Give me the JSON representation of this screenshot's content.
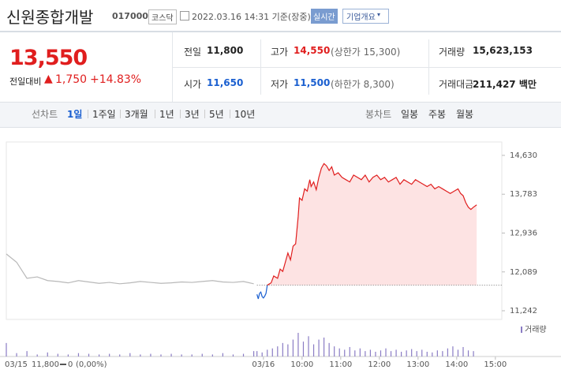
{
  "header": {
    "name": "신원종합개발",
    "code": "017000",
    "market": "코스닥",
    "datetime": "2022.03.16 14:31 기준(장중)",
    "badge": "실시간",
    "button": "기업개요"
  },
  "price": {
    "current": "13,550",
    "change_label": "전일대비",
    "change": "1,750",
    "change_pct": "+14.83%"
  },
  "stats": [
    {
      "label": "전일",
      "value": "11,800",
      "color": "#222"
    },
    {
      "label": "고가",
      "value": "14,550",
      "extra": "(상한가 15,300)",
      "color": "#e01e1e"
    },
    {
      "label": "거래량",
      "value": "15,623,153",
      "color": "#222"
    },
    {
      "label": "시가",
      "value": "11,650",
      "color": "#1a5fd0"
    },
    {
      "label": "저가",
      "value": "11,500",
      "extra": "(하한가 8,300)",
      "color": "#1a5fd0"
    },
    {
      "label": "거래대금",
      "value": "211,427 백만",
      "color": "#222"
    }
  ],
  "tabs": {
    "line_label": "선차트",
    "line": [
      "1일",
      "1주일",
      "3개월",
      "1년",
      "3년",
      "5년",
      "10년"
    ],
    "candle_label": "봉차트",
    "candle": [
      "일봉",
      "주봉",
      "월봉"
    ]
  },
  "chart_data": {
    "type": "line",
    "xlim": [
      141,
      910
    ],
    "ylim": [
      11053,
      14922
    ],
    "xticks": [
      {
        "value": 540,
        "label": "03/16"
      },
      {
        "value": 600,
        "label": "10:00"
      },
      {
        "value": 660,
        "label": "11:00"
      },
      {
        "value": 720,
        "label": "12:00"
      },
      {
        "value": 780,
        "label": "13:00"
      },
      {
        "value": 840,
        "label": "14:00"
      },
      {
        "value": 900,
        "label": "15:00"
      }
    ],
    "yticks": [
      {
        "value": 14630,
        "label": "14,630"
      },
      {
        "value": 13783,
        "label": "13,783"
      },
      {
        "value": 12936,
        "label": "12,936"
      },
      {
        "value": 12089,
        "label": "12,089"
      },
      {
        "value": 11242,
        "label": "11,242"
      }
    ],
    "baseline": 11800,
    "series": [
      {
        "color": "#b8b8b8",
        "x": [
          141,
          157,
          173,
          189,
          205,
          221,
          237,
          253,
          269,
          285,
          301,
          317,
          333,
          349,
          365,
          381,
          397,
          413,
          429,
          445,
          461,
          477,
          493,
          509,
          525
        ],
        "values": [
          12480,
          12300,
          11950,
          11980,
          11900,
          11880,
          11850,
          11900,
          11870,
          11840,
          11860,
          11830,
          11850,
          11880,
          11860,
          11840,
          11850,
          11870,
          11860,
          11880,
          11900,
          11870,
          11860,
          11880,
          11830
        ]
      },
      {
        "color": "#1a5fd0",
        "x": [
          530,
          532,
          534,
          536,
          538,
          540,
          542,
          544,
          546
        ],
        "values": [
          11600,
          11500,
          11620,
          11650,
          11550,
          11520,
          11560,
          11620,
          11800
        ]
      },
      {
        "color": "#e01e1e",
        "fill": "#fde3e3",
        "x": [
          546,
          552,
          556,
          562,
          566,
          570,
          574,
          578,
          582,
          586,
          590,
          594,
          596,
          600,
          604,
          608,
          612,
          614,
          618,
          622,
          626,
          630,
          634,
          638,
          642,
          646,
          650,
          656,
          662,
          668,
          674,
          680,
          686,
          692,
          698,
          704,
          710,
          716,
          722,
          728,
          734,
          740,
          746,
          752,
          758,
          764,
          770,
          776,
          782,
          788,
          794,
          800,
          806,
          812,
          818,
          824,
          830,
          836,
          842,
          846,
          850,
          854,
          858,
          862,
          866,
          871
        ],
        "values": [
          11800,
          11850,
          12000,
          11950,
          12150,
          12100,
          12300,
          12500,
          12350,
          12650,
          12700,
          13300,
          13700,
          13650,
          13900,
          13850,
          14100,
          13950,
          14050,
          13880,
          14150,
          14350,
          14450,
          14400,
          14300,
          14380,
          14200,
          14250,
          14150,
          14100,
          14050,
          14200,
          14150,
          14100,
          14200,
          14050,
          14150,
          14200,
          14100,
          14150,
          14050,
          14100,
          14150,
          14000,
          14100,
          14050,
          14000,
          14100,
          14050,
          14000,
          13950,
          14000,
          13900,
          13950,
          13900,
          13850,
          13800,
          13850,
          13900,
          13800,
          13750,
          13600,
          13500,
          13450,
          13500,
          13550
        ]
      }
    ],
    "volume": {
      "name": "거래량",
      "color": "#8a7cc4",
      "x": [
        141,
        157,
        173,
        189,
        205,
        221,
        237,
        253,
        269,
        285,
        301,
        317,
        333,
        349,
        365,
        381,
        397,
        413,
        429,
        445,
        461,
        477,
        493,
        509,
        525,
        530,
        538,
        546,
        554,
        562,
        570,
        578,
        586,
        594,
        602,
        610,
        618,
        626,
        634,
        642,
        650,
        658,
        666,
        674,
        682,
        690,
        698,
        706,
        714,
        722,
        730,
        738,
        746,
        754,
        762,
        770,
        778,
        786,
        794,
        802,
        810,
        818,
        826,
        834,
        842,
        850,
        858,
        866
      ],
      "values": [
        20,
        5,
        8,
        3,
        6,
        4,
        3,
        5,
        4,
        3,
        4,
        3,
        5,
        3,
        4,
        3,
        4,
        3,
        3,
        4,
        3,
        5,
        3,
        4,
        8,
        8,
        6,
        10,
        12,
        15,
        20,
        18,
        25,
        35,
        22,
        30,
        18,
        25,
        28,
        20,
        15,
        12,
        10,
        14,
        9,
        12,
        8,
        10,
        7,
        9,
        12,
        8,
        10,
        7,
        9,
        11,
        8,
        10,
        7,
        6,
        9,
        8,
        12,
        15,
        10,
        14,
        9,
        8
      ]
    },
    "footer": {
      "date": "03/15",
      "close": "11,800",
      "change": "0",
      "change_pct": "(0,00%)"
    }
  }
}
